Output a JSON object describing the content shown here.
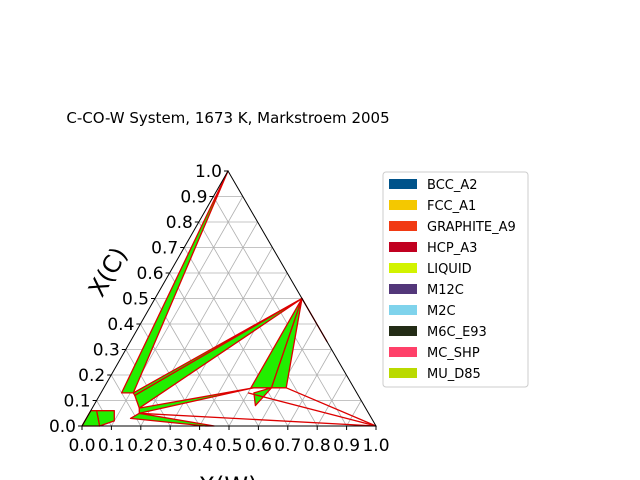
{
  "chart_data": {
    "type": "scatter",
    "title": "C-CO-W System, 1673 K, Markstroem 2005",
    "projection": "ternary",
    "xlabel": "X(W)",
    "ylabel": "X(C)",
    "xlim": [
      0,
      1
    ],
    "ylim": [
      0,
      1
    ],
    "grid": true,
    "legend_placement": "right",
    "x_ticks": [
      "0.0",
      "0.1",
      "0.2",
      "0.3",
      "0.4",
      "0.5",
      "0.6",
      "0.7",
      "0.8",
      "0.9",
      "1.0"
    ],
    "y_ticks": [
      "0.0",
      "0.1",
      "0.2",
      "0.3",
      "0.4",
      "0.5",
      "0.6",
      "0.7",
      "0.8",
      "0.9",
      "1.0"
    ],
    "legend": [
      {
        "label": "BCC_A2",
        "color": "#00538a"
      },
      {
        "label": "FCC_A1",
        "color": "#f4c800"
      },
      {
        "label": "GRAPHITE_A9",
        "color": "#f13a13"
      },
      {
        "label": "HCP_A3",
        "color": "#c10020"
      },
      {
        "label": "LIQUID",
        "color": "#d2f300"
      },
      {
        "label": "M12C",
        "color": "#53377a"
      },
      {
        "label": "M2C",
        "color": "#7fd3ec"
      },
      {
        "label": "M6C_E93",
        "color": "#232c16"
      },
      {
        "label": "MC_SHP",
        "color": "#ff4069"
      },
      {
        "label": "MU_D85",
        "color": "#bada00"
      }
    ],
    "tie_triangle_color": "#22ee00",
    "boundary_color": "#dd0000",
    "regions": [
      {
        "phases": [
          "GRAPHITE_A9",
          "LIQUID"
        ],
        "points": [
          [
            0.0,
            1.0
          ],
          [
            0.07,
            0.13
          ],
          [
            0.11,
            0.13
          ]
        ]
      },
      {
        "phases": [
          "GRAPHITE_A9",
          "LIQUID",
          "MC_SHP"
        ],
        "points": [
          [
            0.11,
            0.13
          ],
          [
            0.12,
            0.12
          ],
          [
            0.5,
            0.5
          ]
        ]
      },
      {
        "phases": [
          "LIQUID",
          "MC_SHP"
        ],
        "points": [
          [
            0.12,
            0.12
          ],
          [
            0.16,
            0.07
          ],
          [
            0.5,
            0.5
          ]
        ]
      },
      {
        "phases": [
          "LIQUID",
          "FCC_A1"
        ],
        "points": [
          [
            0.02,
            0.06
          ],
          [
            0.08,
            0.06
          ],
          [
            0.1,
            0.02
          ],
          [
            0.06,
            0.0
          ]
        ]
      },
      {
        "phases": [
          "FCC_A1",
          "LIQUID"
        ],
        "points": [
          [
            0.0,
            0.06
          ],
          [
            0.02,
            0.06
          ],
          [
            0.06,
            0.0
          ],
          [
            0.0,
            0.0
          ]
        ]
      },
      {
        "phases": [
          "LIQUID",
          "M6C_E93"
        ],
        "points": [
          [
            0.16,
            0.07
          ],
          [
            0.17,
            0.05
          ],
          [
            0.51,
            0.15
          ]
        ]
      },
      {
        "phases": [
          "M6C_E93",
          "MC_SHP"
        ],
        "points": [
          [
            0.5,
            0.15
          ],
          [
            0.57,
            0.15
          ],
          [
            0.5,
            0.5
          ]
        ]
      },
      {
        "phases": [
          "M6C_E93",
          "M2C"
        ],
        "points": [
          [
            0.52,
            0.13
          ],
          [
            0.57,
            0.15
          ],
          [
            0.55,
            0.08
          ]
        ]
      },
      {
        "phases": [
          "M2C",
          "MC_SHP"
        ],
        "points": [
          [
            0.57,
            0.15
          ],
          [
            0.5,
            0.5
          ],
          [
            0.62,
            0.15
          ]
        ]
      },
      {
        "phases": [
          "LIQUID",
          "BCC_A2"
        ],
        "points": [
          [
            0.15,
            0.03
          ],
          [
            0.17,
            0.05
          ],
          [
            0.45,
            0.0
          ],
          [
            0.42,
            0.0
          ]
        ]
      }
    ],
    "boundary_lines": [
      {
        "phases": [
          "MC_SHP",
          "M2C"
        ],
        "points": [
          [
            0.5,
            0.5
          ],
          [
            0.67,
            0.33
          ]
        ]
      },
      {
        "phases": [
          "M2C",
          "BCC_A2"
        ],
        "points": [
          [
            0.62,
            0.15
          ],
          [
            1.0,
            0.0
          ]
        ]
      },
      {
        "phases": [
          "M6C_E93",
          "BCC_A2"
        ],
        "points": [
          [
            0.5,
            0.13
          ],
          [
            1.0,
            0.0
          ]
        ]
      },
      {
        "phases": [
          "LIQUID",
          "BCC_A2"
        ],
        "points": [
          [
            0.17,
            0.05
          ],
          [
            1.0,
            0.0
          ]
        ]
      }
    ]
  }
}
